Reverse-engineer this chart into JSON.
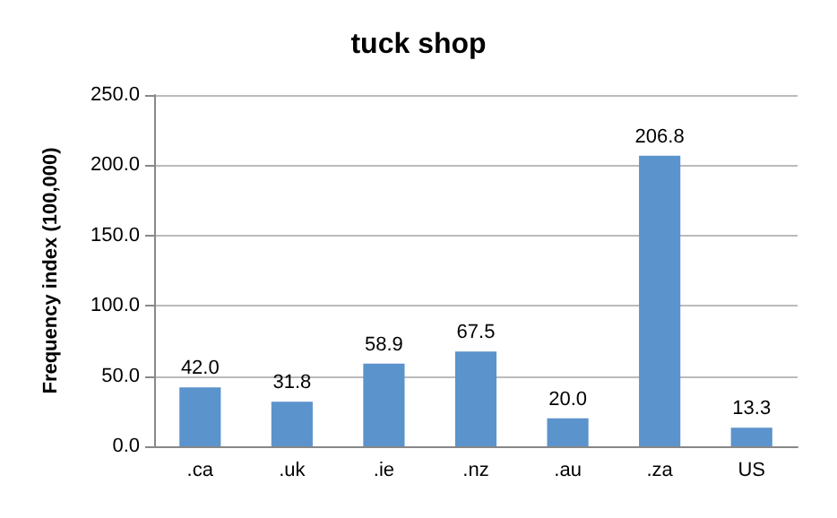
{
  "chart_data": {
    "type": "bar",
    "title": "tuck shop",
    "ylabel": "Frequency index (100,000)",
    "categories": [
      ".ca",
      ".uk",
      ".ie",
      ".nz",
      ".au",
      ".za",
      "US"
    ],
    "values": [
      42.0,
      31.8,
      58.9,
      67.5,
      20.0,
      206.8,
      13.3
    ],
    "value_labels": [
      "42.0",
      "31.8",
      "58.9",
      "67.5",
      "20.0",
      "206.8",
      "13.3"
    ],
    "color": "#5b93cc",
    "ylim": [
      0,
      250
    ],
    "yticks": [
      {
        "value": 0,
        "label": "0.0"
      },
      {
        "value": 50,
        "label": "50.0"
      },
      {
        "value": 100,
        "label": "100.0"
      },
      {
        "value": 150,
        "label": "150.0"
      },
      {
        "value": 200,
        "label": "200.0"
      },
      {
        "value": 250,
        "label": "250.0"
      }
    ],
    "grid": "y"
  }
}
